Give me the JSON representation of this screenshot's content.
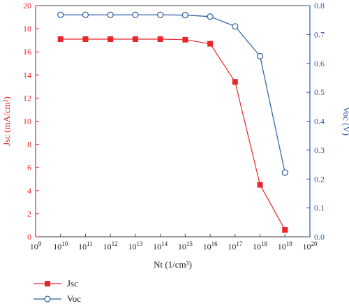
{
  "chart_data": {
    "type": "line",
    "x_scale": "log",
    "x": [
      10000000000.0,
      100000000000.0,
      1000000000000.0,
      10000000000000.0,
      100000000000000.0,
      1000000000000000.0,
      1e+16,
      1e+17,
      1e+18,
      1e+19
    ],
    "xlabel": "Nt (1/cm³)",
    "xlim": [
      1000000000.0,
      1e+20
    ],
    "x_tick_labels": [
      {
        "base": "10",
        "exp": "9"
      },
      {
        "base": "10",
        "exp": "10"
      },
      {
        "base": "10",
        "exp": "11"
      },
      {
        "base": "10",
        "exp": "12"
      },
      {
        "base": "10",
        "exp": "13"
      },
      {
        "base": "10",
        "exp": "14"
      },
      {
        "base": "10",
        "exp": "15"
      },
      {
        "base": "10",
        "exp": "16"
      },
      {
        "base": "10",
        "exp": "17"
      },
      {
        "base": "10",
        "exp": "18"
      },
      {
        "base": "10",
        "exp": "19"
      },
      {
        "base": "10",
        "exp": "20"
      }
    ],
    "y_left": {
      "label": "Jsc (mA/cm²)",
      "lim": [
        0,
        20
      ],
      "ticks": [
        "0",
        "2",
        "4",
        "6",
        "8",
        "10",
        "12",
        "14",
        "16",
        "18",
        "20"
      ],
      "color": "#e8262b"
    },
    "y_right": {
      "label": "Voc (V)",
      "lim": [
        0,
        0.8
      ],
      "ticks": [
        "0.0",
        "0.1",
        "0.2",
        "0.3",
        "0.4",
        "0.5",
        "0.6",
        "0.7",
        "0.8"
      ],
      "color": "#2e5ba5"
    },
    "series": [
      {
        "name": "Jsc",
        "axis": "left",
        "marker": "square",
        "color": "#e8262b",
        "values": [
          17.1,
          17.1,
          17.1,
          17.1,
          17.1,
          17.05,
          16.7,
          13.4,
          4.5,
          0.6
        ]
      },
      {
        "name": "Voc",
        "axis": "right",
        "marker": "circle-open",
        "color": "#2e5ba5",
        "values": [
          0.768,
          0.768,
          0.768,
          0.768,
          0.768,
          0.767,
          0.762,
          0.728,
          0.625,
          0.222
        ]
      }
    ],
    "legend_placement": "bottom-left"
  }
}
